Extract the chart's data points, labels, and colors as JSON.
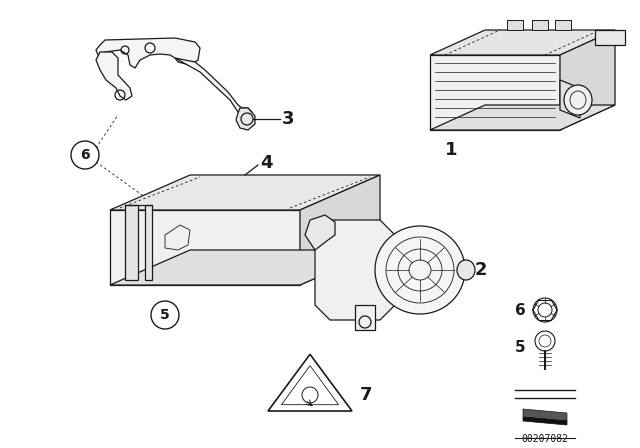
{
  "background_color": "#ffffff",
  "diagram_number": "00207082",
  "line_color": "#1a1a1a",
  "label_font_size": 11,
  "small_font_size": 8
}
